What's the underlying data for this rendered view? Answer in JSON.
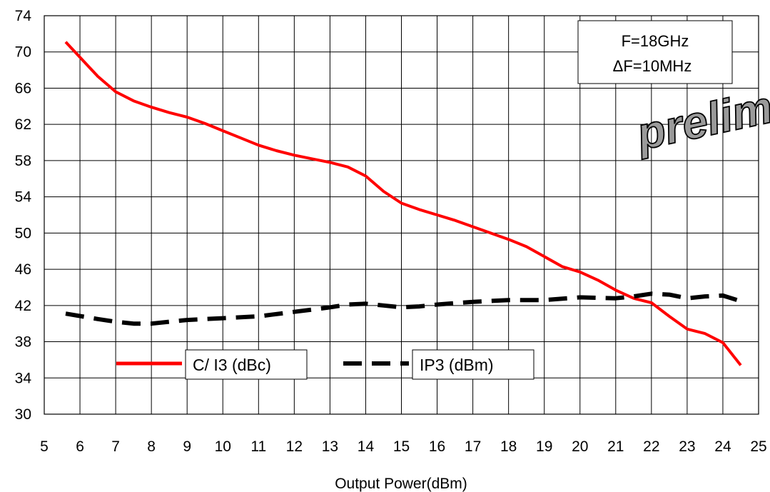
{
  "chart_data": {
    "type": "line",
    "xlabel": "Output Power(dBm)",
    "ylabel": "",
    "xlim": [
      5,
      25
    ],
    "ylim": [
      30,
      74
    ],
    "x_ticks": [
      "5",
      "6",
      "7",
      "8",
      "9",
      "10",
      "11",
      "12",
      "13",
      "14",
      "15",
      "16",
      "17",
      "18",
      "19",
      "20",
      "21",
      "22",
      "23",
      "24",
      "25"
    ],
    "y_ticks": [
      "30",
      "34",
      "38",
      "42",
      "46",
      "50",
      "54",
      "58",
      "62",
      "66",
      "70",
      "74"
    ],
    "grid": true,
    "series": [
      {
        "name": "C/ I3 (dBc)",
        "color": "#ff0000",
        "style": "solid",
        "x": [
          5.6,
          6.0,
          6.5,
          7.0,
          7.5,
          8.0,
          8.5,
          9.0,
          9.5,
          10.0,
          10.5,
          11.0,
          11.5,
          12.0,
          12.5,
          13.0,
          13.5,
          14.0,
          14.5,
          15.0,
          15.5,
          16.0,
          16.5,
          17.0,
          17.5,
          18.0,
          18.5,
          19.0,
          19.5,
          20.0,
          20.5,
          21.0,
          21.5,
          22.0,
          22.5,
          23.0,
          23.5,
          24.0,
          24.5
        ],
        "y": [
          71.1,
          69.4,
          67.3,
          65.6,
          64.6,
          63.9,
          63.3,
          62.8,
          62.1,
          61.3,
          60.5,
          59.7,
          59.1,
          58.6,
          58.2,
          57.8,
          57.3,
          56.3,
          54.6,
          53.3,
          52.6,
          52.0,
          51.4,
          50.7,
          50.0,
          49.3,
          48.5,
          47.4,
          46.3,
          45.7,
          44.8,
          43.7,
          42.8,
          42.3,
          40.8,
          39.4,
          38.9,
          37.9,
          35.4
        ]
      },
      {
        "name": "IP3 (dBm)",
        "color": "#000000",
        "style": "dashed",
        "x": [
          5.6,
          6.5,
          7.0,
          7.5,
          8.0,
          8.5,
          9.0,
          10.0,
          11.0,
          12.0,
          13.0,
          13.5,
          14.0,
          14.5,
          15.0,
          15.5,
          16.0,
          17.0,
          18.0,
          19.0,
          20.0,
          21.0,
          21.5,
          22.0,
          22.5,
          23.0,
          23.5,
          24.0,
          24.4
        ],
        "y": [
          41.1,
          40.5,
          40.2,
          40.0,
          40.0,
          40.2,
          40.4,
          40.6,
          40.8,
          41.3,
          41.8,
          42.1,
          42.2,
          42.0,
          41.8,
          41.9,
          42.1,
          42.4,
          42.6,
          42.6,
          42.9,
          42.8,
          43.0,
          43.3,
          43.2,
          42.8,
          43.0,
          43.1,
          42.6
        ]
      }
    ],
    "legend": [
      {
        "label": "C/ I3 (dBc)",
        "color": "#ff0000",
        "style": "solid"
      },
      {
        "label": "IP3 (dBm)",
        "color": "#000000",
        "style": "dashed"
      }
    ],
    "annotations": {
      "condition_line1": "F=18GHz",
      "condition_line2": "ΔF=10MHz",
      "stamp": "prelim"
    }
  }
}
